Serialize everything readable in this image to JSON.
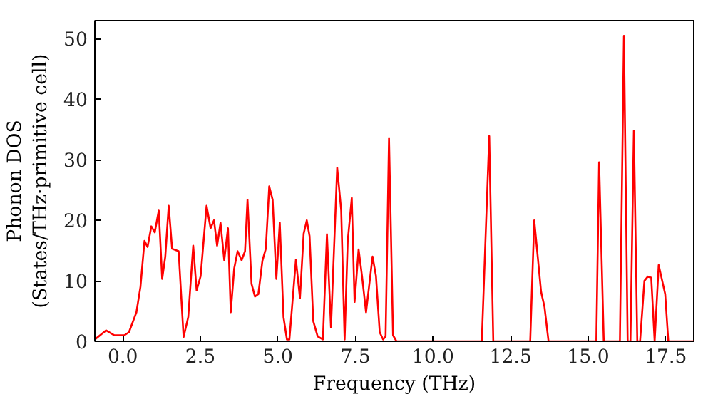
{
  "chart_data": {
    "type": "line",
    "xlabel": "Frequency (THz)",
    "ylabel": "Phonon DOS\n(States/THz·primitive cell)",
    "xlim": [
      -0.9,
      18.4
    ],
    "ylim": [
      0,
      53
    ],
    "xticks": [
      {
        "value": 0,
        "label": "0.0"
      },
      2.5,
      {
        "value": 5,
        "label": "5.0"
      },
      7.5,
      {
        "value": 10,
        "label": "10.0"
      },
      12.5,
      {
        "value": 15,
        "label": "15.0"
      },
      17.5
    ],
    "yticks": [
      0,
      10,
      20,
      30,
      40,
      50
    ],
    "grid": false,
    "series": [
      {
        "color": "#ff0000",
        "x": [
          -0.9,
          -0.54,
          -0.27,
          0.05,
          0.2,
          0.44,
          0.57,
          0.7,
          0.8,
          0.92,
          1.03,
          1.16,
          1.27,
          1.37,
          1.48,
          1.59,
          1.8,
          1.96,
          2.11,
          2.27,
          2.38,
          2.51,
          2.7,
          2.83,
          2.94,
          3.04,
          3.15,
          3.27,
          3.39,
          3.48,
          3.59,
          3.7,
          3.83,
          3.94,
          4.02,
          4.15,
          4.26,
          4.37,
          4.5,
          4.61,
          4.72,
          4.83,
          4.95,
          5.06,
          5.18,
          5.29,
          5.37,
          5.58,
          5.71,
          5.83,
          5.93,
          6.02,
          6.14,
          6.28,
          6.45,
          6.58,
          6.71,
          6.91,
          7.04,
          7.15,
          7.25,
          7.38,
          7.47,
          7.6,
          7.71,
          7.84,
          8.05,
          8.16,
          8.28,
          8.39,
          8.47,
          8.58,
          8.71,
          8.82,
          11.57,
          11.81,
          11.94,
          13.13,
          13.26,
          13.48,
          13.59,
          13.72,
          15.26,
          15.35,
          15.5,
          16.02,
          16.15,
          16.27,
          16.36,
          16.47,
          16.58,
          16.67,
          16.81,
          16.92,
          17.03,
          17.14,
          17.27,
          17.37,
          17.48,
          17.58,
          18.4
        ],
        "values": [
          0.3,
          1.8,
          1.0,
          1.0,
          1.5,
          4.8,
          9,
          16.6,
          15.6,
          19,
          18,
          21.6,
          10.3,
          14,
          22.4,
          15.3,
          14.9,
          0.7,
          4,
          15.8,
          8.4,
          10.8,
          22.4,
          18.7,
          20,
          15.8,
          19.6,
          13.4,
          18.7,
          4.8,
          12,
          14.9,
          13.4,
          14.9,
          23.4,
          9.5,
          7.4,
          7.8,
          13.3,
          15.3,
          25.6,
          23.4,
          10.3,
          19.6,
          4,
          0.3,
          0.3,
          13.5,
          7.1,
          17.8,
          20,
          17.4,
          3.3,
          0.8,
          0.3,
          17.7,
          2.3,
          28.7,
          21.6,
          0.3,
          16.6,
          23.7,
          6.5,
          15.2,
          10.8,
          4.8,
          14,
          10.8,
          1.5,
          0.3,
          0.8,
          33.6,
          1,
          0,
          0,
          33.9,
          0,
          0,
          20,
          8.2,
          5.7,
          0,
          0,
          29.6,
          0,
          0,
          50.5,
          0,
          0,
          34.8,
          0,
          0,
          10,
          10.7,
          10.5,
          0,
          12.6,
          10.3,
          7.8,
          0,
          0
        ]
      }
    ]
  }
}
